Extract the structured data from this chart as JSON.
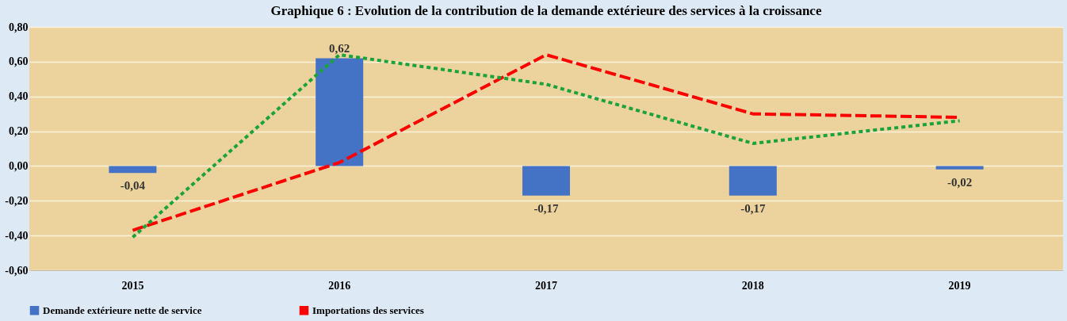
{
  "chart_data": {
    "type": "bar",
    "title": "Graphique 6 : Evolution de la contribution de la demande extérieure des services à la croissance",
    "categories": [
      "2015",
      "2016",
      "2017",
      "2018",
      "2019"
    ],
    "series": [
      {
        "name": "Demande extérieure nette de service",
        "color": "#4472c4",
        "values": [
          -0.04,
          0.62,
          -0.17,
          -0.17,
          -0.02
        ],
        "value_labels": [
          "-0,04",
          "0,62",
          "-0,17",
          "-0,17",
          "-0,02"
        ]
      },
      {
        "name": "Importations des services",
        "type": "line",
        "color": "#ff0000",
        "line_style": "dashed",
        "values": [
          -0.37,
          0.02,
          0.64,
          0.3,
          0.28
        ]
      },
      {
        "type": "line",
        "color": "#1aa33a",
        "line_style": "dotted",
        "values": [
          -0.41,
          0.64,
          0.47,
          0.13,
          0.26
        ]
      }
    ],
    "ylim": [
      -0.6,
      0.8
    ],
    "yticks": [
      {
        "value": -0.6,
        "label": "-0,60"
      },
      {
        "value": -0.4,
        "label": "-0,40"
      },
      {
        "value": -0.2,
        "label": "-0,20"
      },
      {
        "value": 0,
        "label": "0,00"
      },
      {
        "value": 0.2,
        "label": "0,20"
      },
      {
        "value": 0.4,
        "label": "0,40"
      },
      {
        "value": 0.6,
        "label": "0,60"
      },
      {
        "value": 0.8,
        "label": "0,80"
      }
    ],
    "grid": "y",
    "legend": "bottom",
    "marker": "none"
  }
}
